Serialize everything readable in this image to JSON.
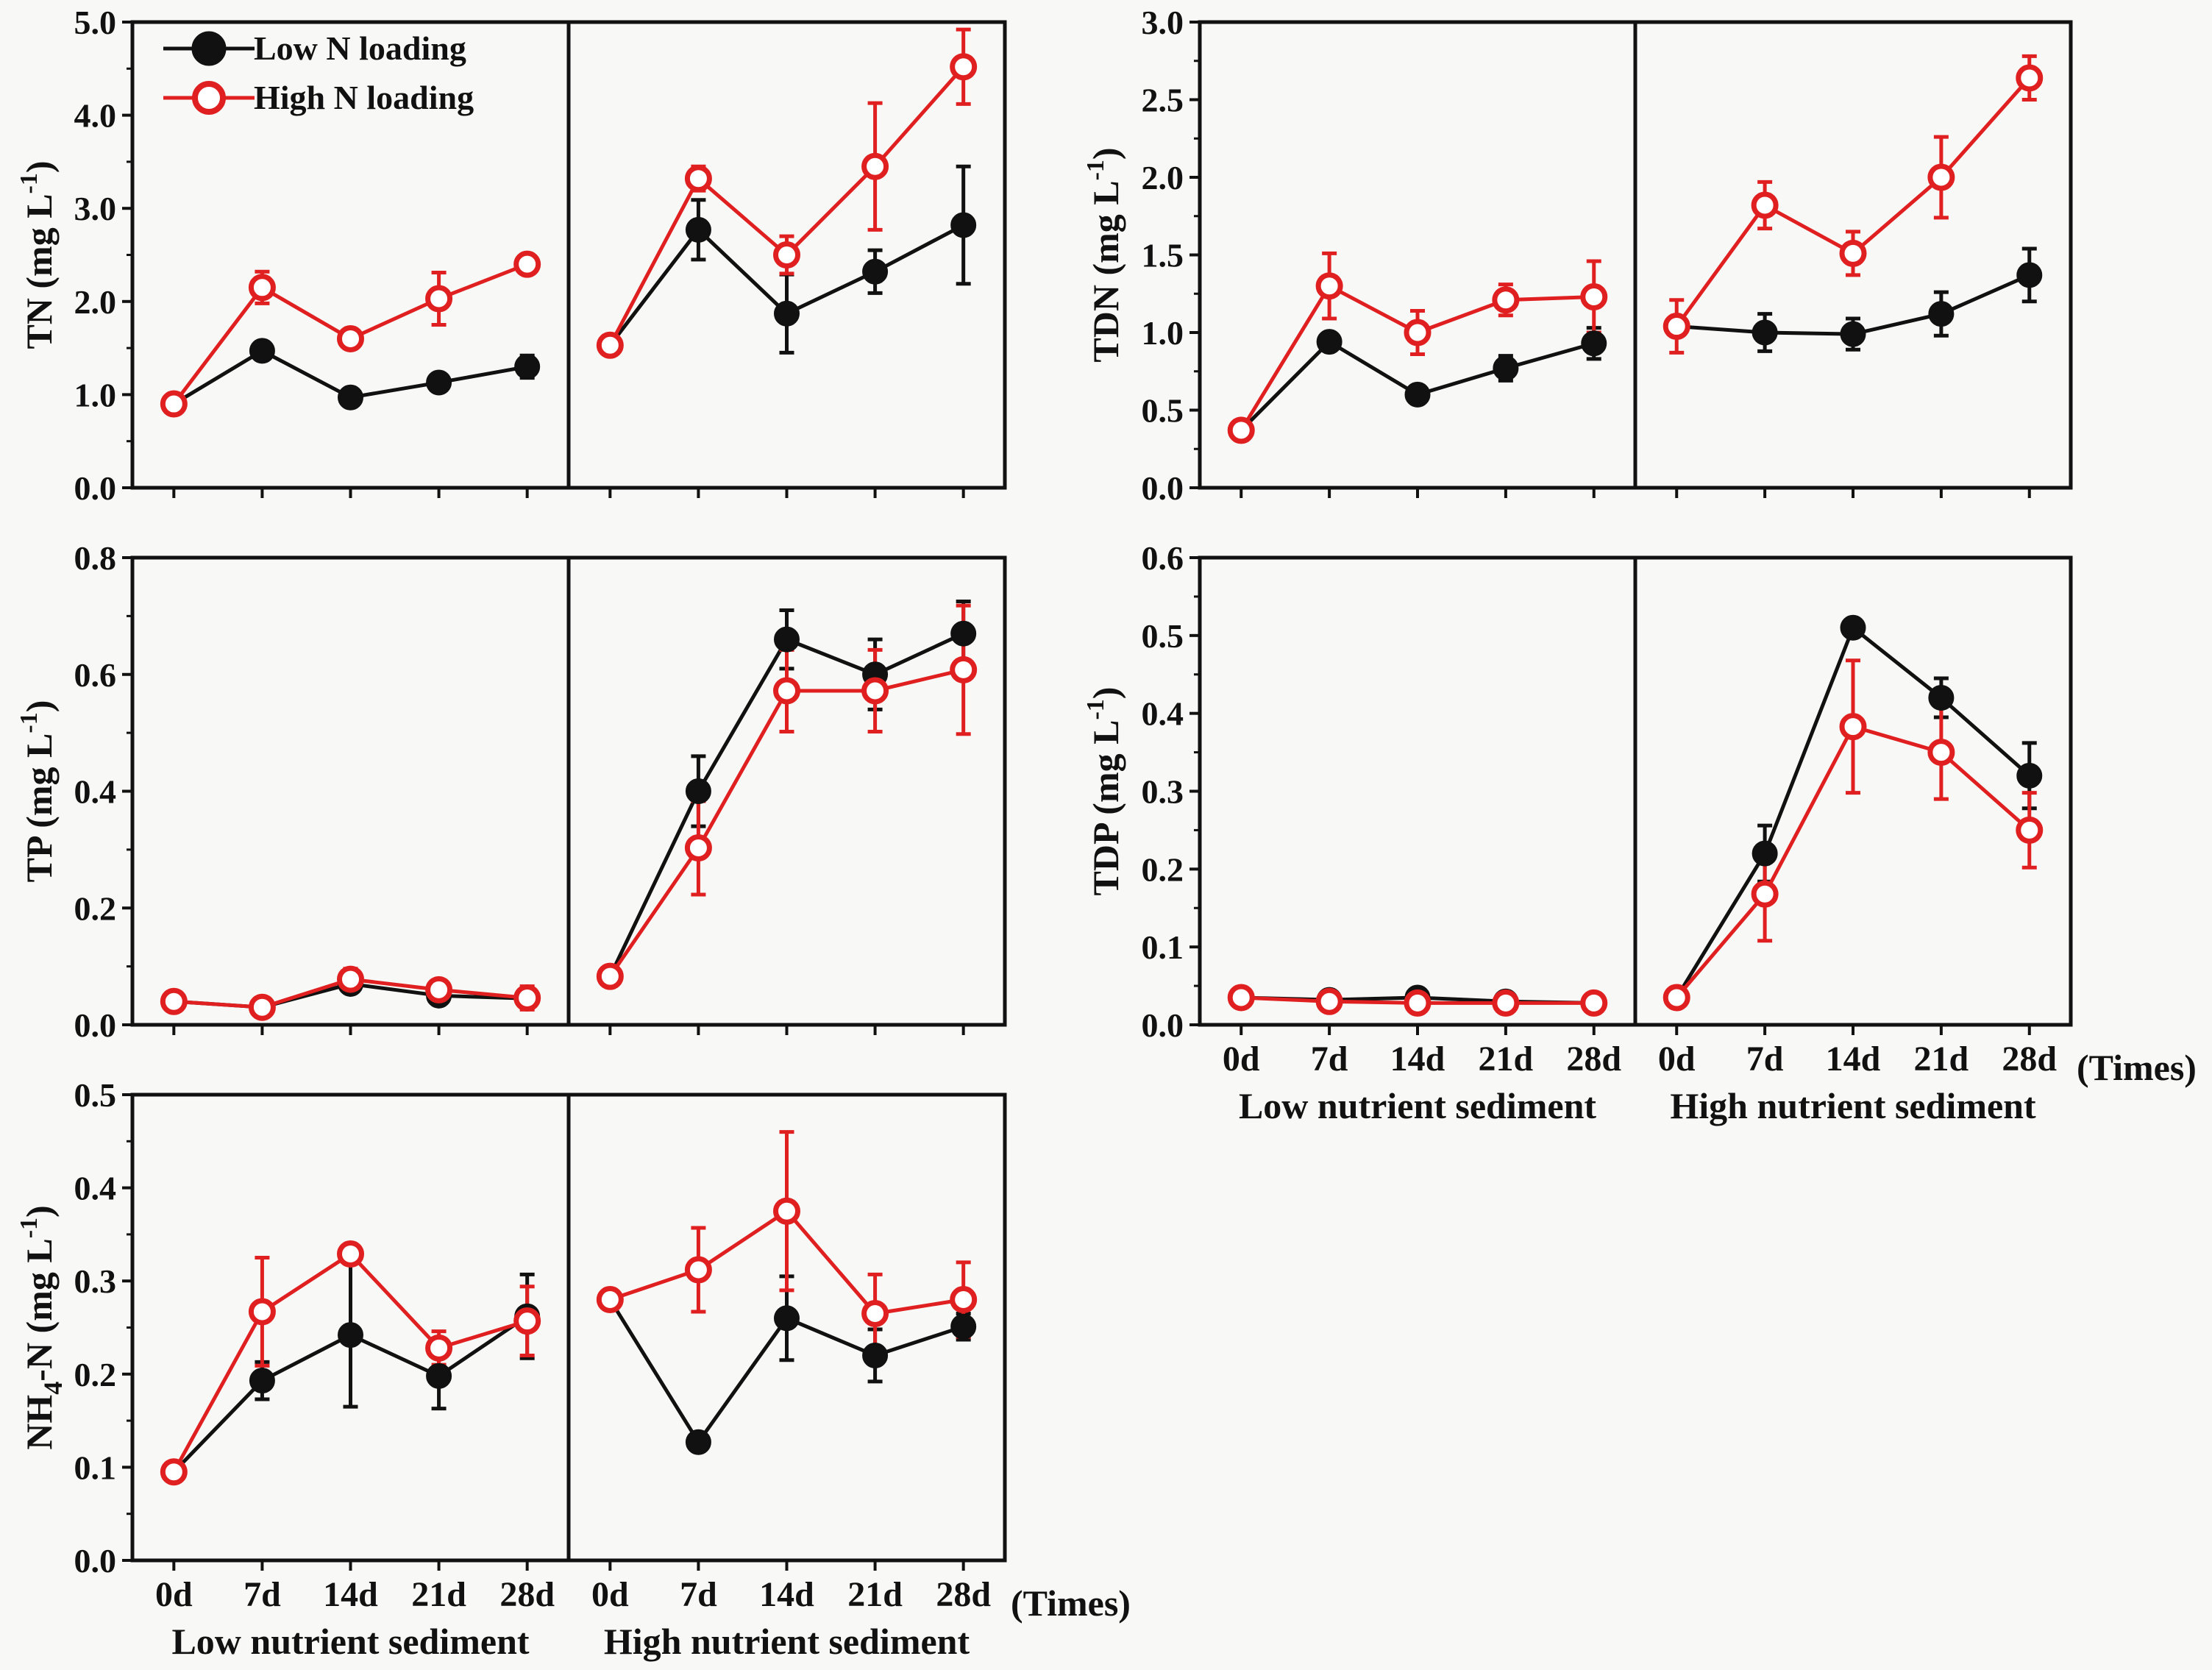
{
  "legend": {
    "items": [
      {
        "label": "Low N loading",
        "color": "#111111",
        "marker": "filled-circle"
      },
      {
        "label": "High N loading",
        "color": "#e02020",
        "marker": "open-circle"
      }
    ]
  },
  "x_categories": [
    "0d",
    "7d",
    "14d",
    "21d",
    "28d"
  ],
  "group_labels": [
    "Low nutrient sediment",
    "High nutrient sediment"
  ],
  "times_label": "(Times)",
  "colors": {
    "low": "#111111",
    "high": "#e02020",
    "axis": "#111111"
  },
  "chart_data": [
    {
      "id": "tn",
      "type": "line",
      "ylabel_main": "TN (mg L",
      "ylabel_sup": "-1",
      "ylabel_end": ")",
      "ylim": [
        0,
        5
      ],
      "yticks": [
        "0.0",
        "1.0",
        "2.0",
        "3.0",
        "4.0",
        "5.0"
      ],
      "x_tick_labels_shown": false,
      "groups": [
        {
          "label": "Low nutrient sediment",
          "series": [
            {
              "name": "Low N loading",
              "values": [
                0.9,
                1.47,
                0.97,
                1.13,
                1.3
              ],
              "errors": [
                0.03,
                0.06,
                0.04,
                0.05,
                0.12
              ]
            },
            {
              "name": "High N loading",
              "values": [
                0.9,
                2.15,
                1.6,
                2.03,
                2.4
              ],
              "errors": [
                0.05,
                0.17,
                0.05,
                0.28,
                0.05
              ]
            }
          ]
        },
        {
          "label": "High nutrient sediment",
          "series": [
            {
              "name": "Low N loading",
              "values": [
                1.53,
                2.77,
                1.87,
                2.32,
                2.82
              ],
              "errors": [
                0.05,
                0.32,
                0.42,
                0.23,
                0.63
              ]
            },
            {
              "name": "High N loading",
              "values": [
                1.53,
                3.32,
                2.5,
                3.45,
                4.52
              ],
              "errors": [
                0.05,
                0.13,
                0.2,
                0.68,
                0.4
              ]
            }
          ]
        }
      ]
    },
    {
      "id": "tdn",
      "type": "line",
      "ylabel_main": "TDN (mg L",
      "ylabel_sup": "-1",
      "ylabel_end": ")",
      "ylim": [
        0,
        3
      ],
      "yticks": [
        "0.0",
        "0.5",
        "1.0",
        "1.5",
        "2.0",
        "2.5",
        "3.0"
      ],
      "x_tick_labels_shown": false,
      "groups": [
        {
          "label": "Low nutrient sediment",
          "series": [
            {
              "name": "Low N loading",
              "values": [
                0.37,
                0.94,
                0.6,
                0.77,
                0.93
              ],
              "errors": [
                0.02,
                0.03,
                0.03,
                0.08,
                0.1
              ]
            },
            {
              "name": "High N loading",
              "values": [
                0.37,
                1.3,
                1.0,
                1.21,
                1.23
              ],
              "errors": [
                0.03,
                0.21,
                0.14,
                0.1,
                0.23
              ]
            }
          ]
        },
        {
          "label": "High nutrient sediment",
          "series": [
            {
              "name": "Low N loading",
              "values": [
                1.04,
                1.0,
                0.99,
                1.12,
                1.37
              ],
              "errors": [
                0.05,
                0.12,
                0.1,
                0.14,
                0.17
              ]
            },
            {
              "name": "High N loading",
              "values": [
                1.04,
                1.82,
                1.51,
                2.0,
                2.64
              ],
              "errors": [
                0.17,
                0.15,
                0.14,
                0.26,
                0.14
              ]
            }
          ]
        }
      ]
    },
    {
      "id": "tp",
      "type": "line",
      "ylabel_main": "TP (mg L",
      "ylabel_sup": "-1",
      "ylabel_end": ")",
      "ylim": [
        0,
        0.8
      ],
      "yticks": [
        "0.0",
        "0.2",
        "0.4",
        "0.6",
        "0.8"
      ],
      "x_tick_labels_shown": false,
      "groups": [
        {
          "label": "Low nutrient sediment",
          "series": [
            {
              "name": "Low N loading",
              "values": [
                0.04,
                0.03,
                0.07,
                0.05,
                0.045
              ],
              "errors": [
                0.005,
                0.005,
                0.012,
                0.01,
                0.015
              ]
            },
            {
              "name": "High N loading",
              "values": [
                0.04,
                0.03,
                0.078,
                0.06,
                0.046
              ],
              "errors": [
                0.006,
                0.006,
                0.018,
                0.01,
                0.02
              ]
            }
          ]
        },
        {
          "label": "High nutrient sediment",
          "series": [
            {
              "name": "Low N loading",
              "values": [
                0.083,
                0.4,
                0.66,
                0.6,
                0.67
              ],
              "errors": [
                0.01,
                0.06,
                0.05,
                0.06,
                0.055
              ]
            },
            {
              "name": "High N loading",
              "values": [
                0.083,
                0.303,
                0.572,
                0.572,
                0.608
              ],
              "errors": [
                0.012,
                0.08,
                0.07,
                0.07,
                0.11
              ]
            }
          ]
        }
      ]
    },
    {
      "id": "tdp",
      "type": "line",
      "ylabel_main": "TDP (mg L",
      "ylabel_sup": "-1",
      "ylabel_end": ")",
      "ylim": [
        0,
        0.6
      ],
      "yticks": [
        "0.0",
        "0.1",
        "0.2",
        "0.3",
        "0.4",
        "0.5",
        "0.6"
      ],
      "x_tick_labels_shown": true,
      "groups": [
        {
          "label": "Low nutrient sediment",
          "series": [
            {
              "name": "Low N loading",
              "values": [
                0.035,
                0.032,
                0.035,
                0.03,
                0.028
              ],
              "errors": [
                0.004,
                0.004,
                0.004,
                0.004,
                0.003
              ]
            },
            {
              "name": "High N loading",
              "values": [
                0.035,
                0.03,
                0.028,
                0.028,
                0.028
              ],
              "errors": [
                0.005,
                0.004,
                0.004,
                0.004,
                0.003
              ]
            }
          ]
        },
        {
          "label": "High nutrient sediment",
          "series": [
            {
              "name": "Low N loading",
              "values": [
                0.035,
                0.22,
                0.51,
                0.42,
                0.32
              ],
              "errors": [
                0.004,
                0.036,
                0.01,
                0.025,
                0.042
              ]
            },
            {
              "name": "High N loading",
              "values": [
                0.035,
                0.168,
                0.383,
                0.35,
                0.25
              ],
              "errors": [
                0.006,
                0.06,
                0.085,
                0.06,
                0.048
              ]
            }
          ]
        }
      ]
    },
    {
      "id": "nh4",
      "type": "line",
      "ylabel_main": "NH",
      "ylabel_sub": "4",
      "ylabel_mid": "-N (mg L",
      "ylabel_sup": "-1",
      "ylabel_end": ")",
      "ylim": [
        0,
        0.5
      ],
      "yticks": [
        "0.0",
        "0.1",
        "0.2",
        "0.3",
        "0.4",
        "0.5"
      ],
      "x_tick_labels_shown": true,
      "groups": [
        {
          "label": "Low nutrient sediment",
          "series": [
            {
              "name": "Low N loading",
              "values": [
                0.095,
                0.193,
                0.242,
                0.198,
                0.262
              ],
              "errors": [
                0.005,
                0.02,
                0.077,
                0.035,
                0.045
              ]
            },
            {
              "name": "High N loading",
              "values": [
                0.095,
                0.267,
                0.329,
                0.228,
                0.257
              ],
              "errors": [
                0.008,
                0.058,
                0.006,
                0.018,
                0.037
              ]
            }
          ]
        },
        {
          "label": "High nutrient sediment",
          "series": [
            {
              "name": "Low N loading",
              "values": [
                0.28,
                0.127,
                0.26,
                0.22,
                0.251
              ],
              "errors": [
                0.005,
                0.005,
                0.045,
                0.028,
                0.014
              ]
            },
            {
              "name": "High N loading",
              "values": [
                0.28,
                0.312,
                0.375,
                0.265,
                0.28
              ],
              "errors": [
                0.006,
                0.045,
                0.085,
                0.042,
                0.04
              ]
            }
          ]
        }
      ]
    }
  ]
}
